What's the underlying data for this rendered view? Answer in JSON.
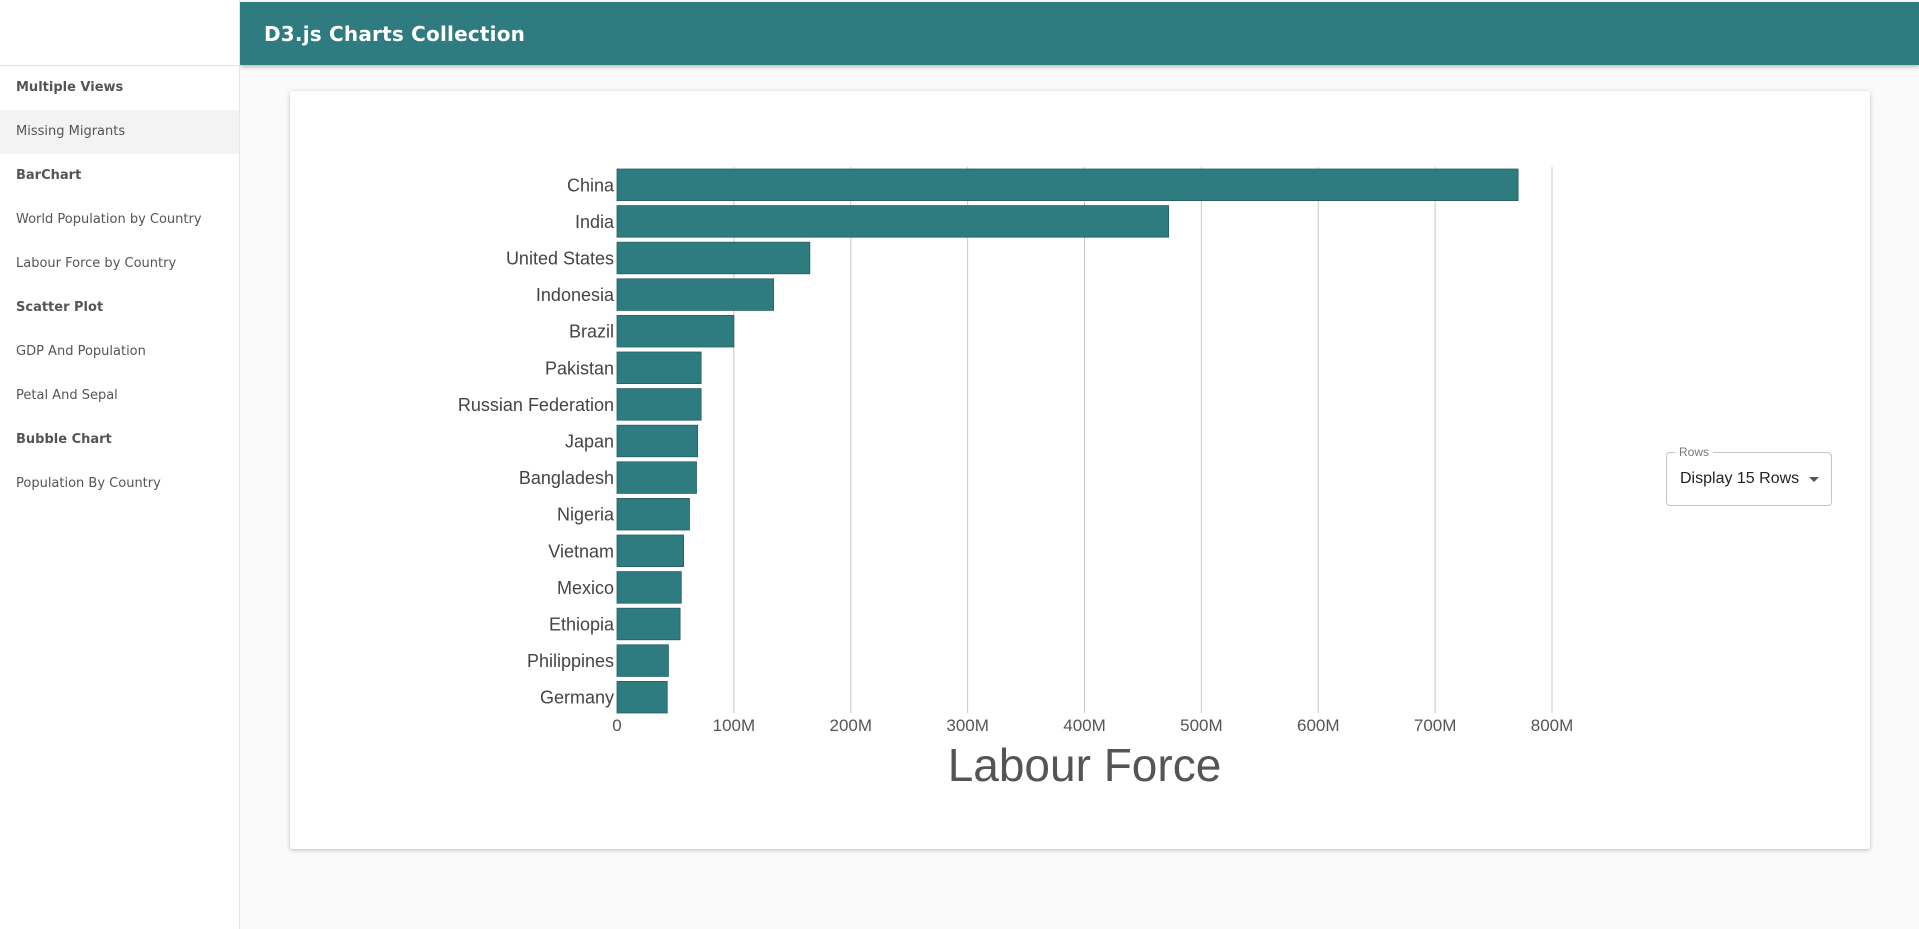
{
  "appbar": {
    "title": "D3.js Charts Collection"
  },
  "sidebar": {
    "sections": [
      {
        "title": "Multiple Views",
        "items": [
          {
            "label": "Missing Migrants",
            "active": true
          }
        ]
      },
      {
        "title": "BarChart",
        "items": [
          {
            "label": "World Population by Country"
          },
          {
            "label": "Labour Force by Country"
          }
        ]
      },
      {
        "title": "Scatter Plot",
        "items": [
          {
            "label": "GDP And Population"
          },
          {
            "label": "Petal And Sepal"
          }
        ]
      },
      {
        "title": "Bubble Chart",
        "items": [
          {
            "label": "Population By Country"
          }
        ]
      }
    ]
  },
  "rows_select": {
    "legend": "Rows",
    "value": "Display 15 Rows"
  },
  "chart_data": {
    "type": "bar",
    "orientation": "horizontal",
    "categories": [
      "China",
      "India",
      "United States",
      "Indonesia",
      "Brazil",
      "Pakistan",
      "Russian Federation",
      "Japan",
      "Bangladesh",
      "Nigeria",
      "Vietnam",
      "Mexico",
      "Ethiopia",
      "Philippines",
      "Germany"
    ],
    "values": [
      771,
      472,
      165,
      134,
      100,
      72,
      72,
      69,
      68,
      62,
      57,
      55,
      54,
      44,
      43
    ],
    "value_unit": "M",
    "xlabel": "Labour Force",
    "xlim": [
      0,
      800
    ],
    "xticks": [
      "0",
      "100M",
      "200M",
      "300M",
      "400M",
      "500M",
      "600M",
      "700M",
      "800M"
    ],
    "xtick_values": [
      0,
      100,
      200,
      300,
      400,
      500,
      600,
      700,
      800
    ],
    "grid": "vertical",
    "color": "#2e7b80"
  }
}
